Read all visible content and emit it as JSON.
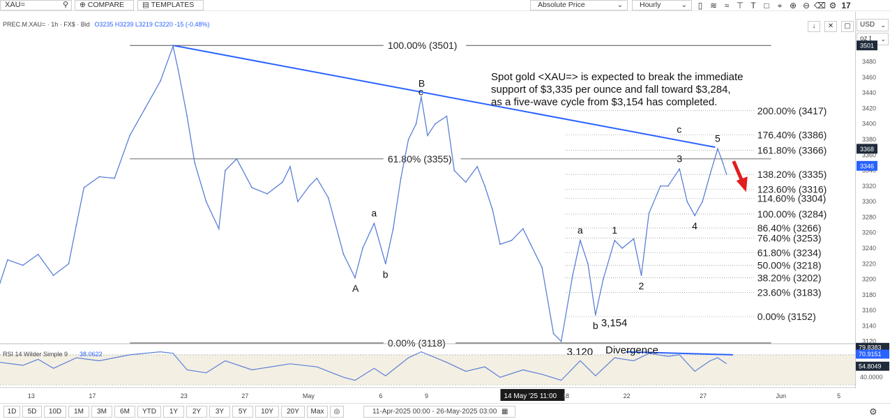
{
  "toolbar": {
    "symbol": "XAU=",
    "compare": "COMPARE",
    "templates": "TEMPLATES",
    "price_type": "Absolute Price",
    "interval": "Hourly",
    "icons": [
      "candles-icon",
      "indicator-icon",
      "wave-icon",
      "crosshair-icon",
      "text-tool-icon",
      "shapes-icon",
      "measure-icon",
      "zoom-in-icon",
      "zoom-out-icon",
      "erase-icon",
      "settings-icon",
      "logo-icon"
    ]
  },
  "info_line": {
    "symbol": "PREC.M.XAU= · 1h · FX$ · Bid",
    "ohlc": "O3235 H3239 L3219 C3220 -15 (-0.48%)"
  },
  "chart_controls": [
    "down-arrow-icon",
    "collapse-icon",
    "maximize-icon"
  ],
  "currency": "USD",
  "unit": "oz t",
  "annotation_text": [
    "Spot gold <XAU=> is expected to break the immediate",
    "support of $3,335 per ounce and fall toward $3,284,",
    "as a five-wave cycle from $3,154 has completed."
  ],
  "accent_color": "#2962ff",
  "price_color": "#5b7fd6",
  "arrow_color": "#e01e1e",
  "chart_data": {
    "type": "line",
    "x_range": [
      "2025-04-11",
      "2025-06-06"
    ],
    "ylim": [
      3100,
      3520
    ],
    "y_ticks": [
      3120,
      3140,
      3160,
      3180,
      3200,
      3220,
      3240,
      3260,
      3280,
      3300,
      3320,
      3340,
      3360,
      3380,
      3400,
      3420,
      3440,
      3460,
      3480
    ],
    "x_ticks": [
      "13",
      "17",
      "23",
      "27",
      "May",
      "6",
      "9",
      "14 May '25  11:00",
      "18",
      "22",
      "27",
      "Jun",
      "5"
    ],
    "highlight_tick": "14 May '25  11:00",
    "price_tags": [
      {
        "value": "3501",
        "style": "dark"
      },
      {
        "value": "3368",
        "style": "dark"
      },
      {
        "value": "3346",
        "style": "blue"
      }
    ],
    "series": [
      {
        "values": [
          {
            "x": "2025-04-11 00:00",
            "y": 3195
          },
          {
            "x": "2025-04-11 12:00",
            "y": 3225
          },
          {
            "x": "2025-04-12 12:00",
            "y": 3218
          },
          {
            "x": "2025-04-13 12:00",
            "y": 3232
          },
          {
            "x": "2025-04-14 12:00",
            "y": 3205
          },
          {
            "x": "2025-04-15 12:00",
            "y": 3220
          },
          {
            "x": "2025-04-16 00:00",
            "y": 3270
          },
          {
            "x": "2025-04-16 12:00",
            "y": 3318
          },
          {
            "x": "2025-04-17 12:00",
            "y": 3332
          },
          {
            "x": "2025-04-18 12:00",
            "y": 3330
          },
          {
            "x": "2025-04-19 12:00",
            "y": 3385
          },
          {
            "x": "2025-04-20 12:00",
            "y": 3420
          },
          {
            "x": "2025-04-21 12:00",
            "y": 3455
          },
          {
            "x": "2025-04-22 08:00",
            "y": 3500
          },
          {
            "x": "2025-04-22 16:00",
            "y": 3470
          },
          {
            "x": "2025-04-23 06:00",
            "y": 3410
          },
          {
            "x": "2025-04-23 18:00",
            "y": 3350
          },
          {
            "x": "2025-04-24 12:00",
            "y": 3300
          },
          {
            "x": "2025-04-25 08:00",
            "y": 3265
          },
          {
            "x": "2025-04-25 18:00",
            "y": 3340
          },
          {
            "x": "2025-04-26 12:00",
            "y": 3355
          },
          {
            "x": "2025-04-27 12:00",
            "y": 3318
          },
          {
            "x": "2025-04-28 12:00",
            "y": 3310
          },
          {
            "x": "2025-04-29 12:00",
            "y": 3325
          },
          {
            "x": "2025-04-30 00:00",
            "y": 3345
          },
          {
            "x": "2025-04-30 12:00",
            "y": 3300
          },
          {
            "x": "2025-05-01 06:00",
            "y": 3320
          },
          {
            "x": "2025-05-01 18:00",
            "y": 3330
          },
          {
            "x": "2025-05-02 12:00",
            "y": 3305
          },
          {
            "x": "2025-05-03 12:00",
            "y": 3232
          },
          {
            "x": "2025-05-04 06:00",
            "y": 3202
          },
          {
            "x": "2025-05-04 18:00",
            "y": 3240
          },
          {
            "x": "2025-05-05 12:00",
            "y": 3272
          },
          {
            "x": "2025-05-06 06:00",
            "y": 3220
          },
          {
            "x": "2025-05-06 18:00",
            "y": 3265
          },
          {
            "x": "2025-05-07 06:00",
            "y": 3330
          },
          {
            "x": "2025-05-07 18:00",
            "y": 3380
          },
          {
            "x": "2025-05-08 06:00",
            "y": 3400
          },
          {
            "x": "2025-05-08 14:00",
            "y": 3435
          },
          {
            "x": "2025-05-09 00:00",
            "y": 3385
          },
          {
            "x": "2025-05-09 12:00",
            "y": 3400
          },
          {
            "x": "2025-05-10 06:00",
            "y": 3410
          },
          {
            "x": "2025-05-10 18:00",
            "y": 3340
          },
          {
            "x": "2025-05-11 12:00",
            "y": 3325
          },
          {
            "x": "2025-05-12 06:00",
            "y": 3345
          },
          {
            "x": "2025-05-12 18:00",
            "y": 3320
          },
          {
            "x": "2025-05-13 06:00",
            "y": 3290
          },
          {
            "x": "2025-05-13 18:00",
            "y": 3245
          },
          {
            "x": "2025-05-14 12:00",
            "y": 3250
          },
          {
            "x": "2025-05-15 06:00",
            "y": 3265
          },
          {
            "x": "2025-05-15 18:00",
            "y": 3245
          },
          {
            "x": "2025-05-16 12:00",
            "y": 3215
          },
          {
            "x": "2025-05-17 06:00",
            "y": 3130
          },
          {
            "x": "2025-05-17 18:00",
            "y": 3120
          },
          {
            "x": "2025-05-18 12:00",
            "y": 3205
          },
          {
            "x": "2025-05-19 00:00",
            "y": 3250
          },
          {
            "x": "2025-05-19 12:00",
            "y": 3220
          },
          {
            "x": "2025-05-20 00:00",
            "y": 3154
          },
          {
            "x": "2025-05-20 12:00",
            "y": 3200
          },
          {
            "x": "2025-05-21 06:00",
            "y": 3250
          },
          {
            "x": "2025-05-21 18:00",
            "y": 3240
          },
          {
            "x": "2025-05-22 12:00",
            "y": 3252
          },
          {
            "x": "2025-05-23 00:00",
            "y": 3205
          },
          {
            "x": "2025-05-23 12:00",
            "y": 3285
          },
          {
            "x": "2025-05-24 06:00",
            "y": 3320
          },
          {
            "x": "2025-05-24 18:00",
            "y": 3320
          },
          {
            "x": "2025-05-25 12:00",
            "y": 3342
          },
          {
            "x": "2025-05-26 00:00",
            "y": 3300
          },
          {
            "x": "2025-05-26 12:00",
            "y": 3282
          },
          {
            "x": "2025-05-27 00:00",
            "y": 3300
          },
          {
            "x": "2025-05-27 12:00",
            "y": 3335
          },
          {
            "x": "2025-05-28 00:00",
            "y": 3368
          },
          {
            "x": "2025-05-28 08:00",
            "y": 3350
          },
          {
            "x": "2025-05-28 14:00",
            "y": 3335
          }
        ]
      }
    ],
    "trendline": {
      "from": {
        "x": "2025-04-22 08:00",
        "y": 3501
      },
      "to": {
        "x": "2025-05-27 20:00",
        "y": 3370
      }
    },
    "fib_retracement": {
      "levels": [
        {
          "label": "100.00% (3501)",
          "value": 3501
        },
        {
          "label": "61.80% (3355)",
          "value": 3355
        },
        {
          "label": "0.00% (3118)",
          "value": 3118
        }
      ]
    },
    "fib_extension": {
      "levels": [
        {
          "label": "200.00% (3417)",
          "value": 3417
        },
        {
          "label": "176.40% (3386)",
          "value": 3386
        },
        {
          "label": "161.80% (3366)",
          "value": 3366
        },
        {
          "label": "138.20% (3335)",
          "value": 3335
        },
        {
          "label": "123.60% (3316)",
          "value": 3316
        },
        {
          "label": "114.60% (3304)",
          "value": 3304
        },
        {
          "label": "100.00% (3284)",
          "value": 3284
        },
        {
          "label": "86.40% (3266)",
          "value": 3266
        },
        {
          "label": "76.40% (3253)",
          "value": 3253
        },
        {
          "label": "61.80% (3234)",
          "value": 3234
        },
        {
          "label": "50.00% (3218)",
          "value": 3218
        },
        {
          "label": "38.20% (3202)",
          "value": 3202
        },
        {
          "label": "23.60% (3183)",
          "value": 3183
        },
        {
          "label": "0.00% (3152)",
          "value": 3152
        }
      ]
    },
    "wave_labels": [
      {
        "text": "A",
        "x": "2025-05-04 06:00",
        "y": 3202,
        "pos": "below"
      },
      {
        "text": "a",
        "x": "2025-05-05 12:00",
        "y": 3272,
        "pos": "above"
      },
      {
        "text": "b",
        "x": "2025-05-06 06:00",
        "y": 3220,
        "pos": "below"
      },
      {
        "text": "B",
        "x": "2025-05-08 14:00",
        "y": 3435,
        "pos": "above"
      },
      {
        "text": "c",
        "x": "2025-05-08 14:00",
        "y": 3435,
        "pos": "above-small"
      },
      {
        "text": "a",
        "x": "2025-05-19 00:00",
        "y": 3250,
        "pos": "above"
      },
      {
        "text": "b",
        "x": "2025-05-20 00:00",
        "y": 3154,
        "pos": "below"
      },
      {
        "text": "1",
        "x": "2025-05-21 06:00",
        "y": 3250,
        "pos": "above"
      },
      {
        "text": "2",
        "x": "2025-05-23 00:00",
        "y": 3205,
        "pos": "below"
      },
      {
        "text": "3",
        "x": "2025-05-25 12:00",
        "y": 3342,
        "pos": "above"
      },
      {
        "text": "c",
        "x": "2025-05-25 12:00",
        "y": 3342,
        "pos": "far-above"
      },
      {
        "text": "4",
        "x": "2025-05-26 12:00",
        "y": 3282,
        "pos": "below"
      },
      {
        "text": "5",
        "x": "2025-05-28 00:00",
        "y": 3368,
        "pos": "above"
      }
    ],
    "value_callouts": [
      {
        "text": "3,154",
        "x": "2025-05-20 00:00",
        "y": 3154
      },
      {
        "text": "3,120",
        "x": "2025-05-17 18:00",
        "y": 3120
      }
    ]
  },
  "rsi": {
    "label": "RSI 14 Wilder Simple 9",
    "value": "38.0622",
    "axis_ticks": [
      "40.0000"
    ],
    "upper": 70,
    "lower": 30,
    "ylim": [
      30,
      82
    ],
    "tags": [
      {
        "value": "79.8383",
        "style": "dark"
      },
      {
        "value": "70.9151",
        "style": "blue"
      },
      {
        "value": "54.8049",
        "style": "dark"
      }
    ],
    "divergence_label": "Divergence",
    "divergence_line": {
      "from": {
        "x": "2025-05-22 00:00",
        "y": 74
      },
      "to": {
        "x": "2025-05-29 00:00",
        "y": 70
      }
    },
    "values": [
      {
        "x": "2025-04-11 00:00",
        "y": 60
      },
      {
        "x": "2025-04-12 12:00",
        "y": 56
      },
      {
        "x": "2025-04-13 12:00",
        "y": 64
      },
      {
        "x": "2025-04-14 12:00",
        "y": 52
      },
      {
        "x": "2025-04-16 00:00",
        "y": 66
      },
      {
        "x": "2025-04-17 12:00",
        "y": 62
      },
      {
        "x": "2025-04-19 12:00",
        "y": 70
      },
      {
        "x": "2025-04-21 12:00",
        "y": 74
      },
      {
        "x": "2025-04-22 08:00",
        "y": 72
      },
      {
        "x": "2025-04-23 06:00",
        "y": 50
      },
      {
        "x": "2025-04-24 12:00",
        "y": 46
      },
      {
        "x": "2025-04-25 18:00",
        "y": 62
      },
      {
        "x": "2025-04-27 12:00",
        "y": 50
      },
      {
        "x": "2025-04-30 00:00",
        "y": 58
      },
      {
        "x": "2025-05-01 18:00",
        "y": 54
      },
      {
        "x": "2025-05-03 12:00",
        "y": 40
      },
      {
        "x": "2025-05-04 06:00",
        "y": 36
      },
      {
        "x": "2025-05-05 12:00",
        "y": 52
      },
      {
        "x": "2025-05-06 06:00",
        "y": 42
      },
      {
        "x": "2025-05-07 18:00",
        "y": 66
      },
      {
        "x": "2025-05-08 14:00",
        "y": 74
      },
      {
        "x": "2025-05-10 06:00",
        "y": 60
      },
      {
        "x": "2025-05-11 12:00",
        "y": 48
      },
      {
        "x": "2025-05-12 18:00",
        "y": 54
      },
      {
        "x": "2025-05-13 18:00",
        "y": 40
      },
      {
        "x": "2025-05-15 06:00",
        "y": 50
      },
      {
        "x": "2025-05-16 12:00",
        "y": 44
      },
      {
        "x": "2025-05-17 18:00",
        "y": 36
      },
      {
        "x": "2025-05-19 00:00",
        "y": 62
      },
      {
        "x": "2025-05-20 00:00",
        "y": 42
      },
      {
        "x": "2025-05-21 06:00",
        "y": 66
      },
      {
        "x": "2025-05-22 12:00",
        "y": 62
      },
      {
        "x": "2025-05-23 12:00",
        "y": 72
      },
      {
        "x": "2025-05-24 18:00",
        "y": 68
      },
      {
        "x": "2025-05-25 12:00",
        "y": 70
      },
      {
        "x": "2025-05-26 12:00",
        "y": 48
      },
      {
        "x": "2025-05-27 12:00",
        "y": 62
      },
      {
        "x": "2025-05-28 00:00",
        "y": 66
      },
      {
        "x": "2025-05-28 14:00",
        "y": 58
      }
    ]
  },
  "bottom_bar": {
    "ranges": [
      "1D",
      "5D",
      "10D",
      "1M",
      "3M",
      "6M",
      "YTD",
      "1Y",
      "2Y",
      "3Y",
      "5Y",
      "10Y",
      "20Y",
      "Max"
    ],
    "date_range": "11-Apr-2025 00:00 - 26-May-2025 03:00"
  }
}
